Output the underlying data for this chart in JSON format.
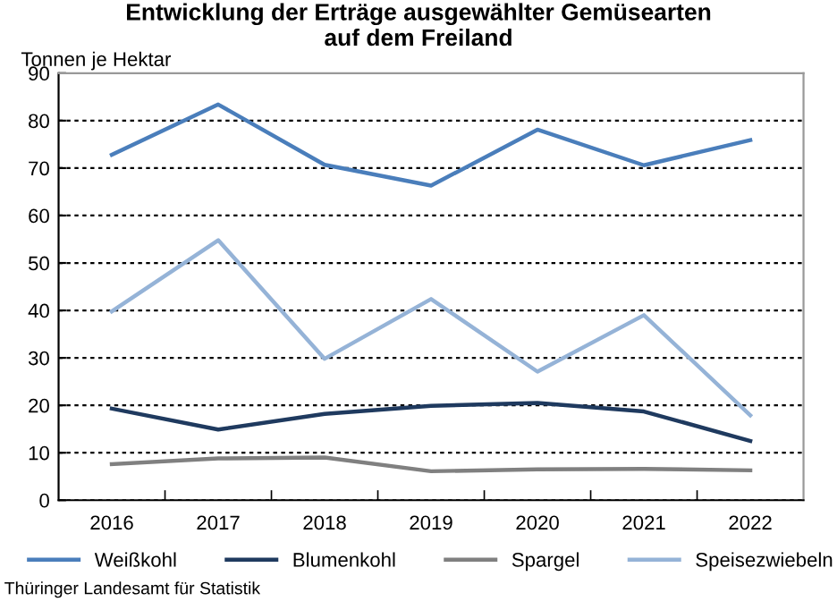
{
  "chart_data": {
    "type": "line",
    "title": "Entwicklung der Erträge ausgewählter Gemüsearten\nauf dem Freiland",
    "ylabel": "Tonnen je Hektar",
    "categories": [
      "2016",
      "2017",
      "2018",
      "2019",
      "2020",
      "2021",
      "2022"
    ],
    "series": [
      {
        "name": "Weißkohl",
        "color": "#4a7ebb",
        "values": [
          72.8,
          83.4,
          70.7,
          66.3,
          78.1,
          70.6,
          75.9
        ]
      },
      {
        "name": "Blumenkohl",
        "color": "#1f3a5f",
        "values": [
          19.3,
          14.9,
          18.2,
          19.9,
          20.5,
          18.7,
          12.5
        ]
      },
      {
        "name": "Spargel",
        "color": "#808080",
        "values": [
          7.6,
          8.8,
          9.0,
          6.1,
          6.5,
          6.6,
          6.3
        ]
      },
      {
        "name": "Speisezwiebeln",
        "color": "#95b3d7",
        "values": [
          39.8,
          54.8,
          29.8,
          42.4,
          27.1,
          39.0,
          17.9
        ]
      }
    ],
    "ylim": [
      0,
      90
    ],
    "yticks": [
      0,
      10,
      20,
      30,
      40,
      50,
      60,
      70,
      80,
      90
    ],
    "grid": "y",
    "legend": "bottom",
    "marker": "none",
    "line_style": "solid",
    "annotations": [
      "Thüringer Landesamt für Statistik"
    ]
  }
}
